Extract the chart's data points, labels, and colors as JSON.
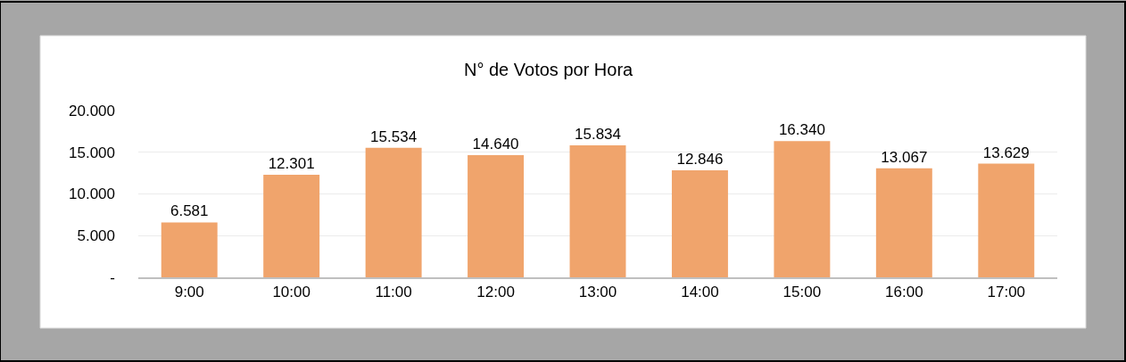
{
  "chart_data": {
    "type": "bar",
    "title": "N° de Votos por Hora",
    "categories": [
      "9:00",
      "10:00",
      "11:00",
      "12:00",
      "13:00",
      "14:00",
      "15:00",
      "16:00",
      "17:00"
    ],
    "values": [
      6581,
      12301,
      15534,
      14640,
      15834,
      12846,
      16340,
      13067,
      13629
    ],
    "value_labels": [
      "6.581",
      "12.301",
      "15.534",
      "14.640",
      "15.834",
      "12.846",
      "16.340",
      "13.067",
      "13.629"
    ],
    "color": "#f0a46c",
    "ylim": [
      0,
      20000
    ],
    "yticks": [
      {
        "value": 0,
        "label": "-"
      },
      {
        "value": 5000,
        "label": "5.000"
      },
      {
        "value": 10000,
        "label": "10.000"
      },
      {
        "value": 15000,
        "label": "15.000"
      },
      {
        "value": 20000,
        "label": "20.000"
      }
    ],
    "grid": "y",
    "legend": false
  }
}
